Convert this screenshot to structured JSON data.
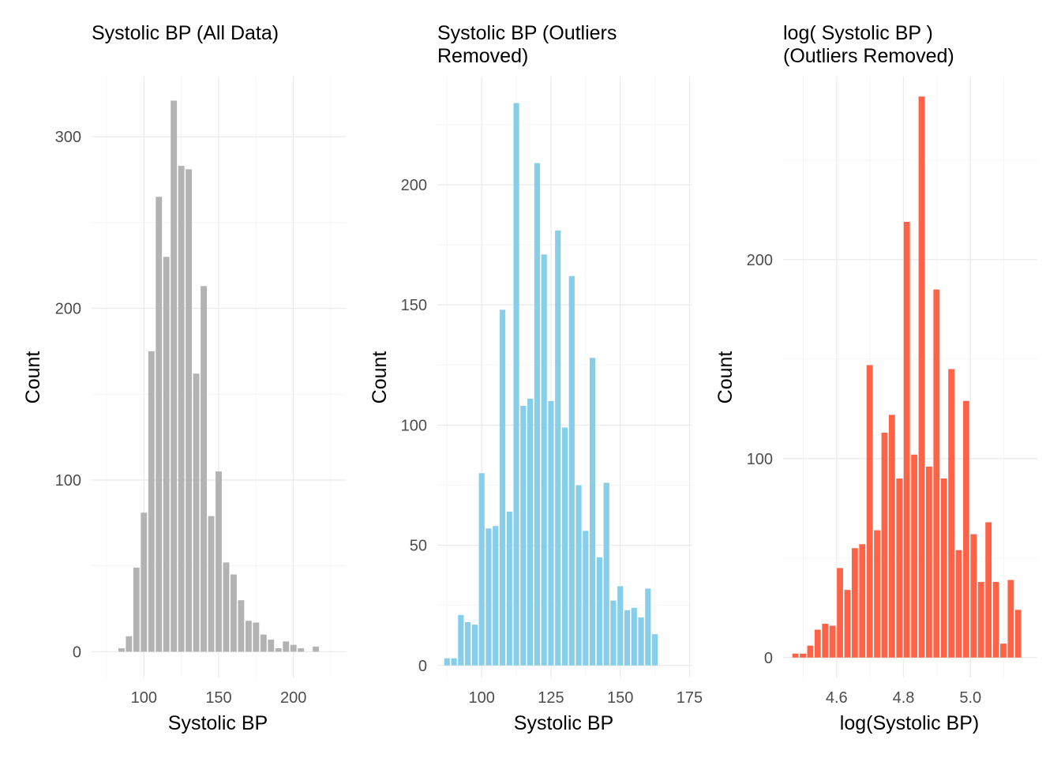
{
  "chart_data": [
    {
      "type": "bar",
      "title_lines": [
        "Systolic BP (All Data)"
      ],
      "xlabel": "Systolic BP",
      "ylabel": "Count",
      "color": "#B3B3B3",
      "xlim": [
        65,
        235
      ],
      "ylim": [
        -15,
        335
      ],
      "xticks": [
        100,
        150,
        200
      ],
      "xticklabels": [
        "100",
        "150",
        "200"
      ],
      "yticks": [
        0,
        100,
        200,
        300
      ],
      "yticklabels": [
        "0",
        "100",
        "200",
        "300"
      ],
      "grid": true,
      "bin_width": 5,
      "x": [
        80,
        85,
        90,
        95,
        100,
        105,
        110,
        115,
        120,
        125,
        130,
        135,
        140,
        145,
        150,
        155,
        160,
        165,
        170,
        175,
        180,
        185,
        190,
        195,
        200,
        205,
        210,
        215,
        220
      ],
      "values": [
        0,
        2,
        9,
        49,
        81,
        175,
        265,
        230,
        321,
        283,
        281,
        162,
        213,
        79,
        105,
        52,
        45,
        30,
        18,
        17,
        10,
        7,
        2,
        6,
        4,
        2,
        0,
        3,
        0
      ]
    },
    {
      "type": "bar",
      "title_lines": [
        "Systolic BP (Outliers",
        "Removed)"
      ],
      "xlabel": "Systolic BP",
      "ylabel": "Count",
      "color": "#87CEEB",
      "xlim": [
        84,
        176
      ],
      "ylim": [
        -5,
        245
      ],
      "xticks": [
        100,
        125,
        150,
        175
      ],
      "xticklabels": [
        "100",
        "125",
        "150",
        "175"
      ],
      "yticks": [
        0,
        50,
        100,
        150,
        200
      ],
      "yticklabels": [
        "0",
        "50",
        "100",
        "150",
        "200"
      ],
      "grid": true,
      "bin_width": 2.5,
      "x": [
        87.5,
        90,
        92.5,
        95,
        97.5,
        100,
        102.5,
        105,
        107.5,
        110,
        112.5,
        115,
        117.5,
        120,
        122.5,
        125,
        127.5,
        130,
        132.5,
        135,
        137.5,
        140,
        142.5,
        145,
        147.5,
        150,
        152.5,
        155,
        157.5,
        160,
        162.5,
        165,
        167.5,
        170
      ],
      "values": [
        3,
        3,
        21,
        18,
        17,
        80,
        57,
        58,
        148,
        64,
        234,
        108,
        111,
        209,
        171,
        110,
        181,
        99,
        162,
        75,
        56,
        128,
        45,
        76,
        27,
        33,
        23,
        24,
        20,
        32,
        13,
        0,
        0,
        0
      ]
    },
    {
      "type": "bar",
      "title_lines": [
        "log( Systolic BP )",
        "(Outliers Removed)"
      ],
      "xlabel": "log(Systolic BP)",
      "ylabel": "Count",
      "color": "#FF6347",
      "xlim": [
        4.44,
        5.2
      ],
      "ylim": [
        -10,
        292
      ],
      "xticks": [
        4.6,
        4.8,
        5.0
      ],
      "xticklabels": [
        "4.6",
        "4.8",
        "5.0"
      ],
      "yticks": [
        0,
        100,
        200
      ],
      "yticklabels": [
        "0",
        "100",
        "200"
      ],
      "grid": true,
      "bin_width": 0.0222,
      "x": [
        4.4768,
        4.499,
        4.5212,
        4.5434,
        4.5656,
        4.5878,
        4.61,
        4.6322,
        4.6544,
        4.6766,
        4.6988,
        4.721,
        4.7432,
        4.7654,
        4.7876,
        4.8098,
        4.832,
        4.8542,
        4.8764,
        4.8986,
        4.9208,
        4.943,
        4.9652,
        4.9874,
        5.0096,
        5.0318,
        5.054,
        5.0762,
        5.0984,
        5.1206,
        5.1428
      ],
      "values": [
        2,
        2,
        6,
        14,
        17,
        16,
        45,
        34,
        55,
        57,
        147,
        64,
        113,
        122,
        90,
        219,
        102,
        282,
        96,
        185,
        90,
        145,
        54,
        129,
        62,
        38,
        68,
        38,
        7,
        39,
        24
      ]
    }
  ]
}
